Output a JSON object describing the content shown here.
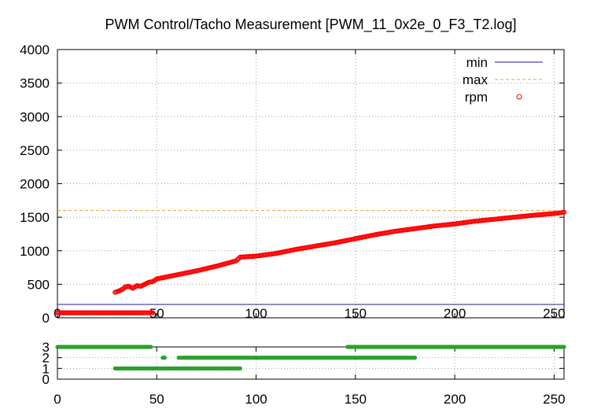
{
  "chart_data": [
    {
      "type": "scatter",
      "title": "PWM Control/Tacho Measurement [PWM_11_0x2e_0_F3_T2.log]",
      "xlabel": "",
      "ylabel": "",
      "xlim": [
        0,
        255
      ],
      "ylim": [
        0,
        4000
      ],
      "x_ticks": [
        0,
        50,
        100,
        150,
        200,
        250
      ],
      "y_ticks": [
        0,
        500,
        1000,
        1500,
        2000,
        2500,
        3000,
        3500,
        4000
      ],
      "grid": true,
      "legend_position": "top-right",
      "legend": [
        "min",
        "max",
        "rpm"
      ],
      "series": [
        {
          "name": "min",
          "kind": "hline",
          "value": 200,
          "color": "#1a1aa0"
        },
        {
          "name": "max",
          "kind": "hline",
          "value": 1600,
          "color": "#f0a030"
        },
        {
          "name": "rpm",
          "kind": "points",
          "color": "#ff0000",
          "x_range": [
            0,
            255
          ],
          "low_segment": {
            "x_from": 0,
            "x_to": 48,
            "y": 75
          },
          "rising_points": [
            [
              29,
              380
            ],
            [
              31,
              400
            ],
            [
              33,
              430
            ],
            [
              34,
              460
            ],
            [
              36,
              470
            ],
            [
              38,
              440
            ],
            [
              40,
              480
            ],
            [
              42,
              470
            ],
            [
              44,
              500
            ],
            [
              46,
              530
            ],
            [
              48,
              540
            ],
            [
              50,
              580
            ],
            [
              60,
              640
            ],
            [
              70,
              700
            ],
            [
              80,
              770
            ],
            [
              90,
              850
            ],
            [
              92,
              905
            ],
            [
              100,
              920
            ],
            [
              110,
              960
            ],
            [
              120,
              1020
            ],
            [
              130,
              1070
            ],
            [
              140,
              1120
            ],
            [
              150,
              1180
            ],
            [
              160,
              1240
            ],
            [
              170,
              1290
            ],
            [
              180,
              1330
            ],
            [
              190,
              1370
            ],
            [
              200,
              1400
            ],
            [
              210,
              1440
            ],
            [
              220,
              1470
            ],
            [
              230,
              1500
            ],
            [
              240,
              1530
            ],
            [
              250,
              1555
            ],
            [
              255,
              1575
            ]
          ]
        }
      ]
    },
    {
      "type": "scatter",
      "title": "",
      "xlabel": "",
      "ylabel": "",
      "xlim": [
        0,
        255
      ],
      "ylim": [
        0,
        3
      ],
      "x_ticks": [
        0,
        50,
        100,
        150,
        200,
        250
      ],
      "y_ticks": [
        0,
        1,
        2,
        3
      ],
      "grid": true,
      "series": [
        {
          "name": "",
          "color": "#2ca02c",
          "segments": [
            {
              "y": 3,
              "x_from": 0,
              "x_to": 47
            },
            {
              "y": 3,
              "x_from": 146,
              "x_to": 255
            },
            {
              "y": 2,
              "x_from": 53,
              "x_to": 54
            },
            {
              "y": 2,
              "x_from": 61,
              "x_to": 180
            },
            {
              "y": 1,
              "x_from": 29,
              "x_to": 92
            }
          ]
        }
      ]
    }
  ]
}
